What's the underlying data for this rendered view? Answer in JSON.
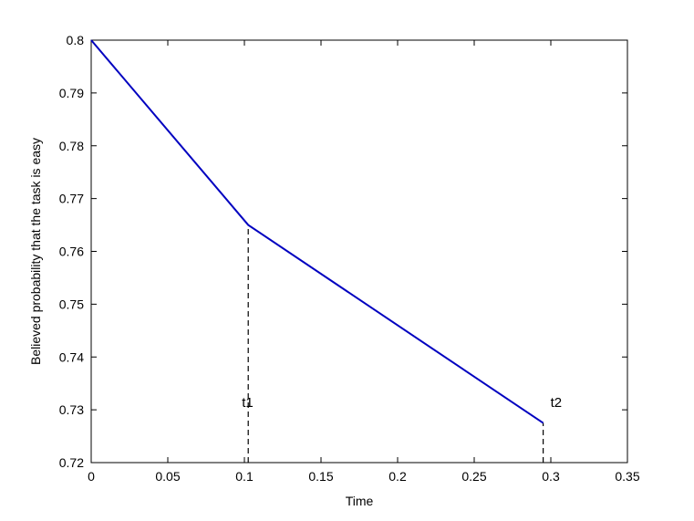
{
  "chart_data": {
    "type": "line",
    "xlabel": "Time",
    "ylabel": "Believed probability that the task is easy",
    "xlim": [
      0,
      0.35
    ],
    "ylim": [
      0.72,
      0.8
    ],
    "x_ticks": [
      "0",
      "0.05",
      "0.1",
      "0.15",
      "0.2",
      "0.25",
      "0.3",
      "0.35"
    ],
    "y_ticks": [
      "0.72",
      "0.73",
      "0.74",
      "0.75",
      "0.76",
      "0.77",
      "0.78",
      "0.79",
      "0.8"
    ],
    "grid": false,
    "series": [
      {
        "color": "#0000c0",
        "x": [
          0,
          0.1025,
          0.295
        ],
        "y": [
          0.8,
          0.765,
          0.7275
        ]
      }
    ],
    "annotations": [
      {
        "label": "t1",
        "x": 0.1025,
        "y_from": 0.72,
        "y_to": 0.765,
        "style": "dashed"
      },
      {
        "label": "t2",
        "x": 0.295,
        "y_from": 0.72,
        "y_to": 0.7275,
        "style": "dashed"
      }
    ]
  }
}
